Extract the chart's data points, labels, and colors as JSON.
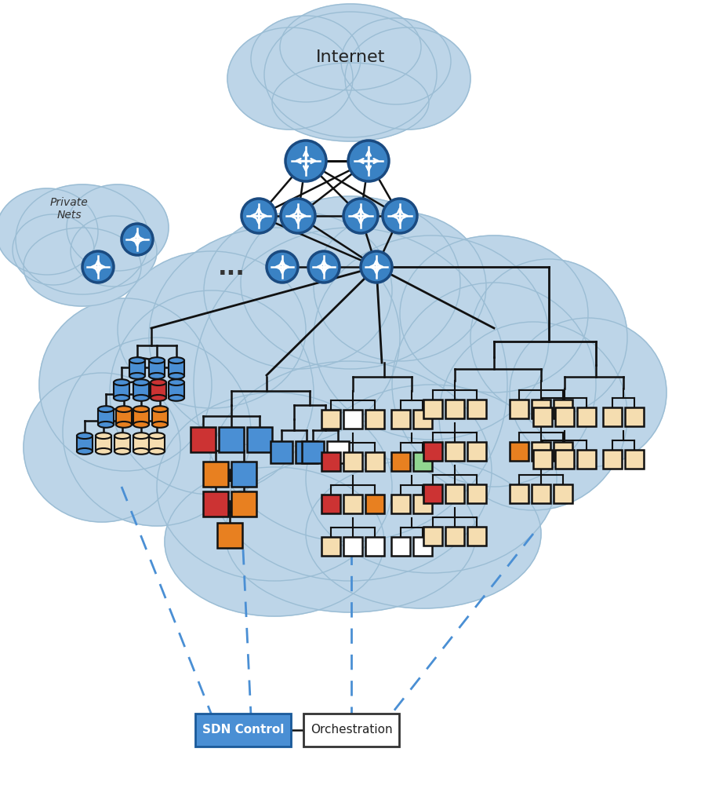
{
  "cloud_color": "#bdd5e8",
  "cloud_edge_color": "#9bbdd4",
  "internet_label": "Internet",
  "private_label": "Private\nNets",
  "router_fill": "#3a82c4",
  "router_edge": "#1a4a80",
  "sdn_label": "SDN Control",
  "orch_label": "Orchestration",
  "sdn_fill": "#4a8fd4",
  "sdn_edge": "#1a5a9a",
  "orch_fill": "#ffffff",
  "orch_edge": "#333333",
  "bg_color": "#ffffff",
  "dash_color": "#4a8fd4",
  "line_color": "#111111",
  "text_color": "#222222"
}
